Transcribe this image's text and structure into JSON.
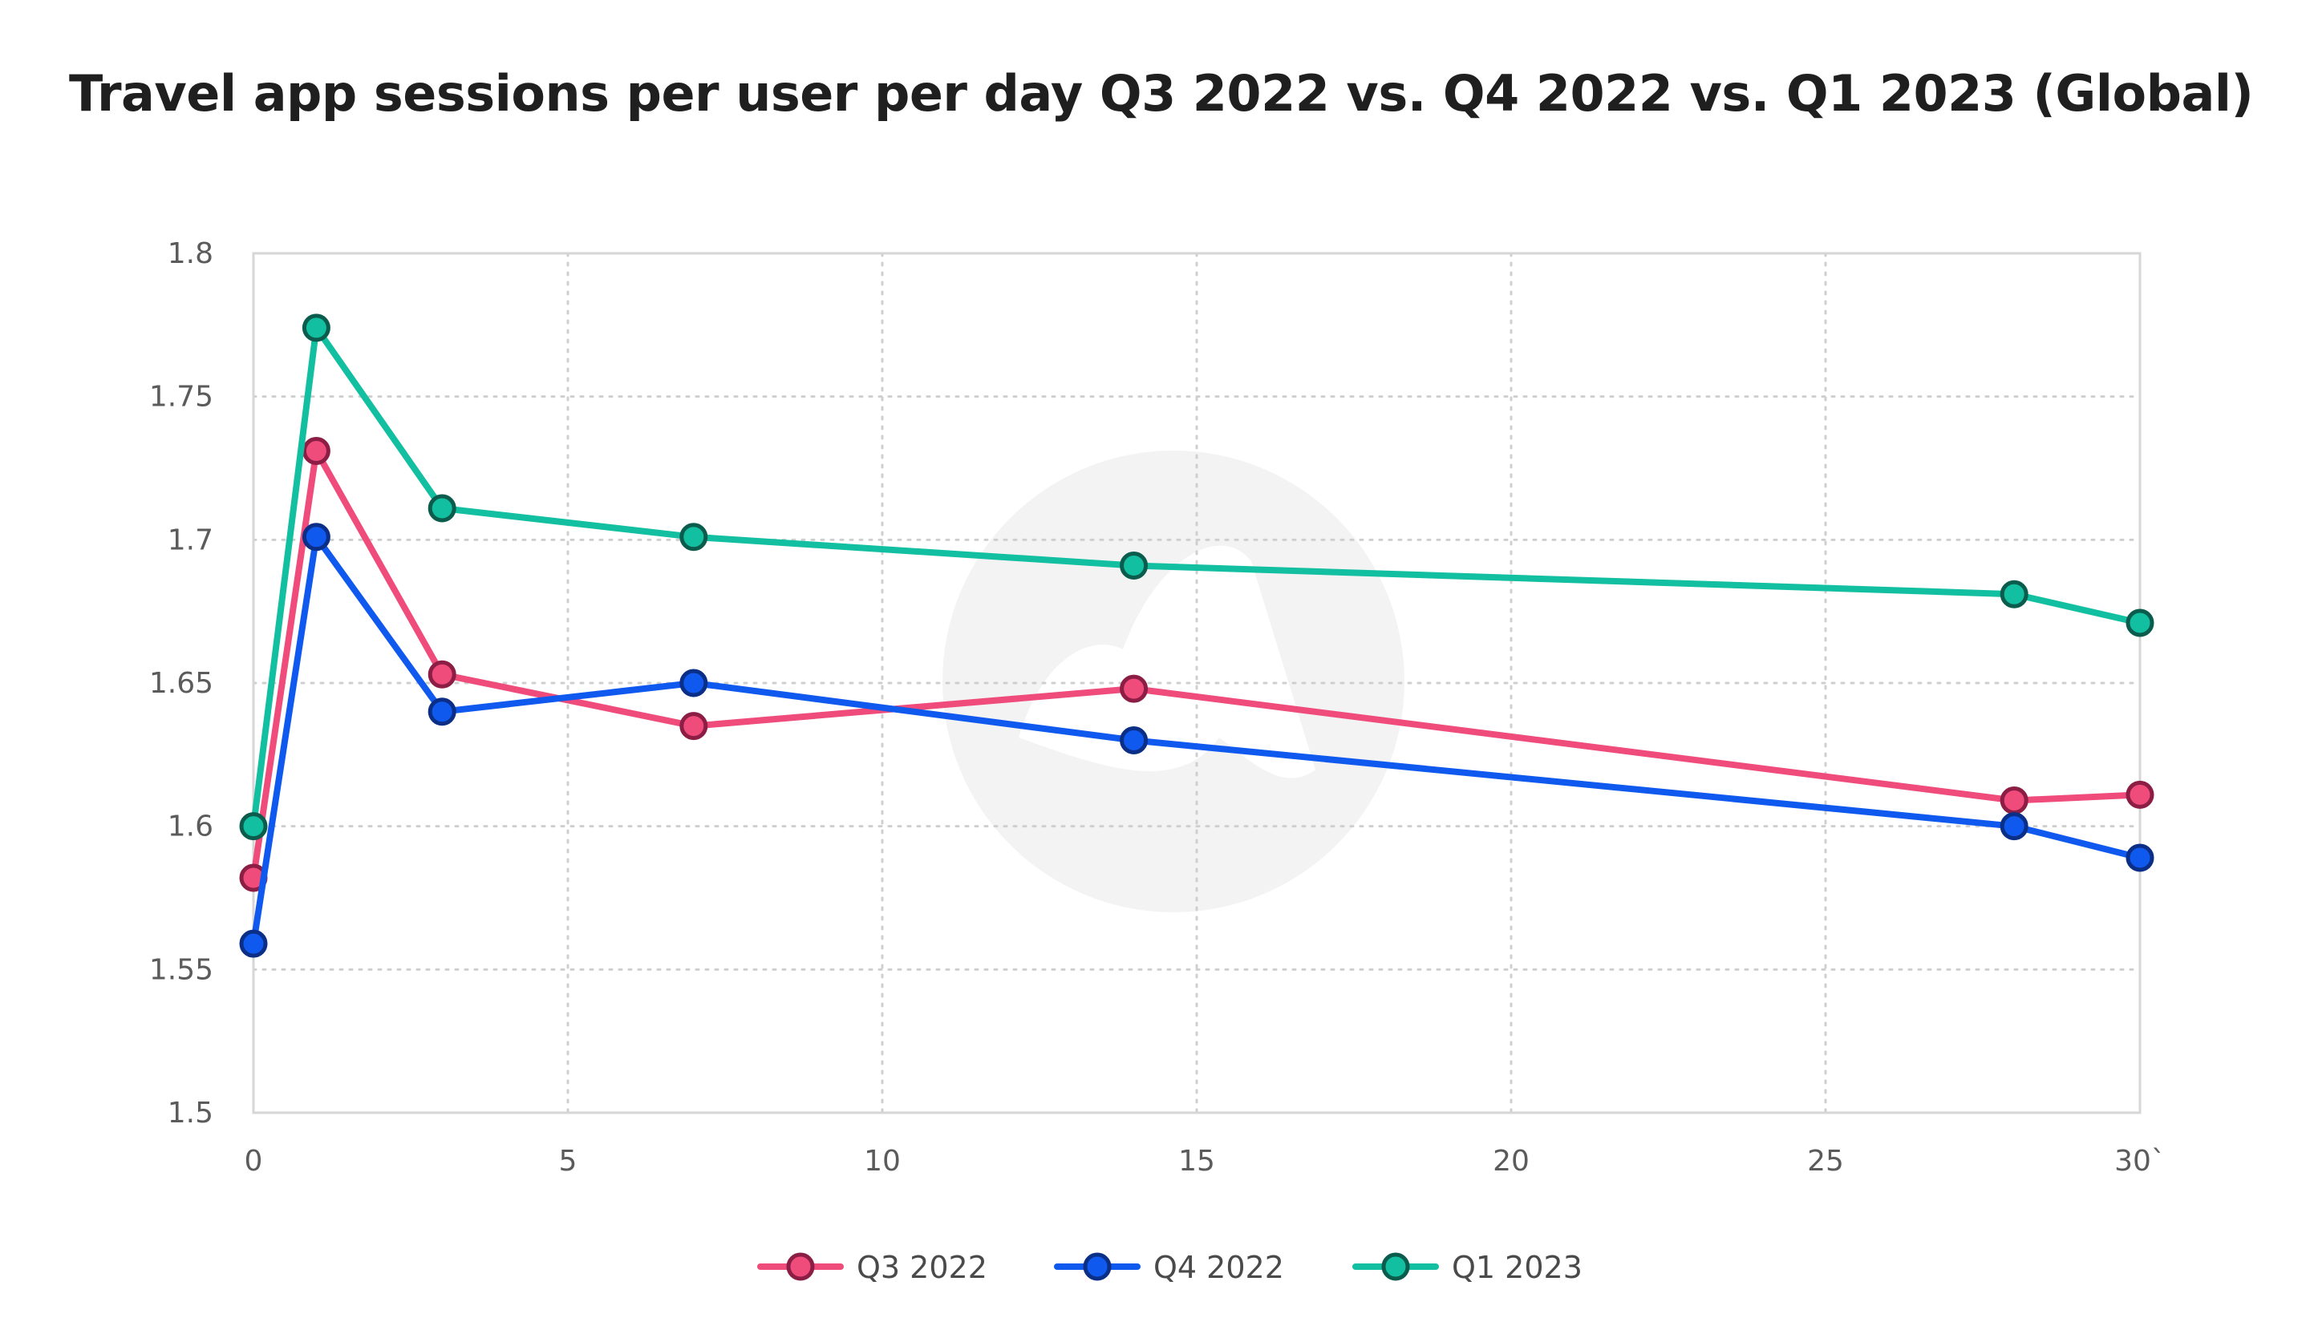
{
  "chart_data": {
    "type": "line",
    "title": "Travel app sessions per user per day Q3 2022 vs. Q4 2022 vs. Q1 2023 (Global)",
    "xlabel": "",
    "ylabel": "",
    "xlim": [
      0,
      30
    ],
    "ylim": [
      1.5,
      1.8
    ],
    "x_ticks": [
      0,
      5,
      10,
      15,
      20,
      25,
      30
    ],
    "x_tick_labels": [
      "0",
      "5",
      "10",
      "15",
      "20",
      "25",
      "30`"
    ],
    "y_ticks": [
      1.5,
      1.55,
      1.6,
      1.65,
      1.7,
      1.75,
      1.8
    ],
    "y_tick_labels": [
      "1.5",
      "1.55",
      "1.6",
      "1.65",
      "1.7",
      "1.75",
      "1.8"
    ],
    "grid": true,
    "legend_position": "bottom-center",
    "series": [
      {
        "name": "Q3 2022",
        "color": "#ef4b7b",
        "edge_color": "#8c1d45",
        "x": [
          0,
          1,
          3,
          7,
          14,
          28,
          30
        ],
        "y": [
          1.582,
          1.731,
          1.653,
          1.635,
          1.648,
          1.609,
          1.611
        ]
      },
      {
        "name": "Q4 2022",
        "color": "#1059ef",
        "edge_color": "#0b2f86",
        "x": [
          0,
          1,
          3,
          7,
          14,
          28,
          30
        ],
        "y": [
          1.559,
          1.701,
          1.64,
          1.65,
          1.63,
          1.6,
          1.589
        ]
      },
      {
        "name": "Q1 2023",
        "color": "#12bfa0",
        "edge_color": "#0b5c4d",
        "x": [
          0,
          1,
          3,
          7,
          14,
          28,
          30
        ],
        "y": [
          1.6,
          1.774,
          1.711,
          1.701,
          1.691,
          1.681,
          1.671
        ]
      }
    ]
  }
}
